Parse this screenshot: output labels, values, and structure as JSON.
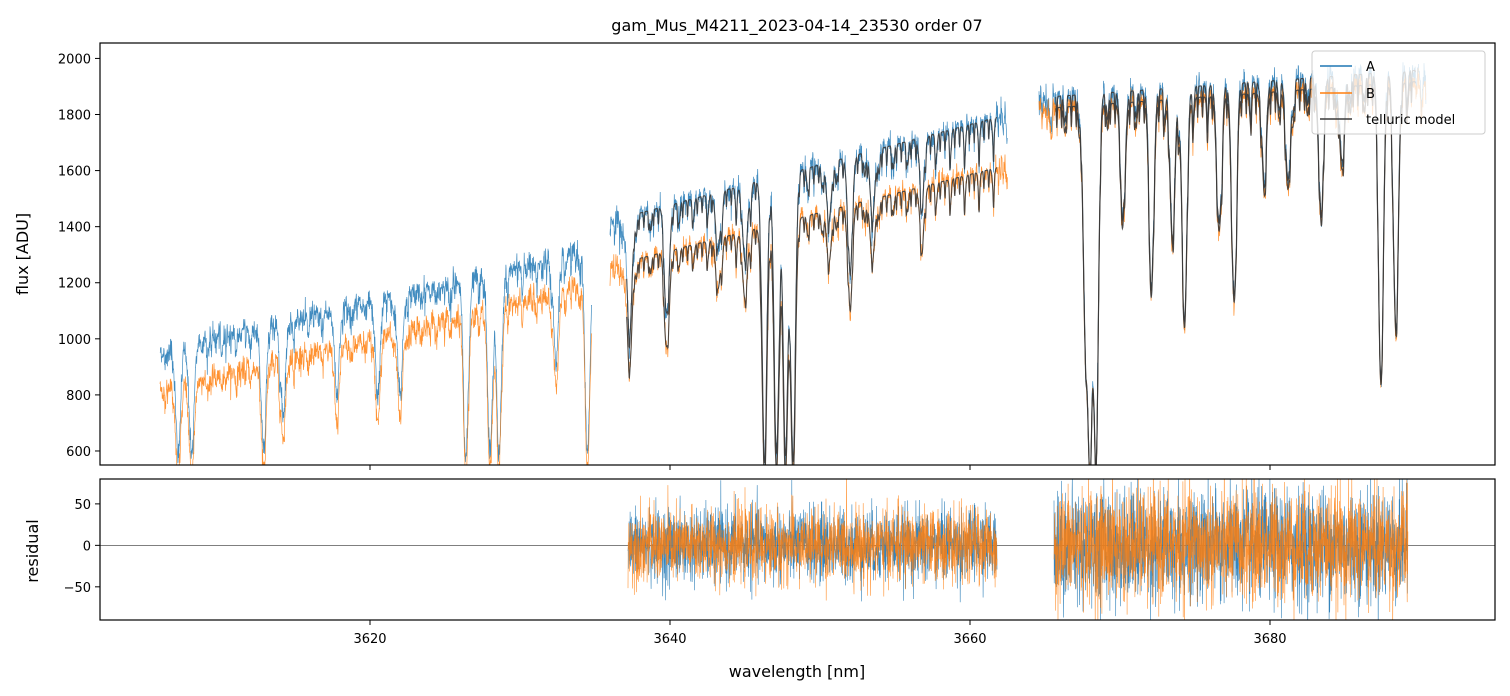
{
  "chart_data": [
    {
      "type": "line",
      "panel": "flux",
      "title": "gam_Mus_M4211_2023-04-14_23530  order 07",
      "xlabel": "",
      "ylabel": "flux [ADU]",
      "xlim": [
        3602,
        3695
      ],
      "ylim": [
        550,
        2055
      ],
      "yticks": [
        600,
        800,
        1000,
        1200,
        1400,
        1600,
        1800,
        2000
      ],
      "xticks": [
        3620,
        3640,
        3660,
        3680
      ],
      "grid": false,
      "legend": {
        "position": "top-right",
        "entries": [
          "A",
          "B",
          "telluric model"
        ]
      },
      "segments": [
        {
          "x0": 3606.0,
          "x1": 3634.8,
          "A": [
            960,
            1320
          ],
          "B": [
            820,
            1200
          ]
        },
        {
          "x0": 3636.0,
          "x1": 3662.5,
          "A": [
            1420,
            1800
          ],
          "B": [
            1260,
            1620
          ]
        },
        {
          "x0": 3664.6,
          "x1": 3690.4,
          "A": [
            1860,
            1960
          ],
          "B": [
            1820,
            1920
          ]
        }
      ],
      "absorption_lines": [
        {
          "x": 3607.2,
          "min": 560
        },
        {
          "x": 3608.1,
          "min": 560
        },
        {
          "x": 3612.9,
          "min": 580
        },
        {
          "x": 3614.2,
          "min": 690
        },
        {
          "x": 3617.8,
          "min": 790
        },
        {
          "x": 3620.5,
          "min": 770
        },
        {
          "x": 3622.0,
          "min": 760
        },
        {
          "x": 3626.4,
          "min": 560
        },
        {
          "x": 3628.0,
          "min": 560
        },
        {
          "x": 3628.6,
          "min": 560
        },
        {
          "x": 3632.4,
          "min": 880
        },
        {
          "x": 3634.5,
          "min": 560
        },
        {
          "x": 3637.3,
          "min": 950
        },
        {
          "x": 3639.8,
          "min": 1040
        },
        {
          "x": 3643.2,
          "min": 1250
        },
        {
          "x": 3645.0,
          "min": 1210
        },
        {
          "x": 3646.3,
          "min": 560
        },
        {
          "x": 3647.1,
          "min": 560
        },
        {
          "x": 3647.7,
          "min": 560
        },
        {
          "x": 3648.2,
          "min": 560
        },
        {
          "x": 3650.6,
          "min": 1350
        },
        {
          "x": 3652.0,
          "min": 1220
        },
        {
          "x": 3653.5,
          "min": 1360
        },
        {
          "x": 3656.8,
          "min": 1450
        },
        {
          "x": 3667.7,
          "min": 1050
        },
        {
          "x": 3668.0,
          "min": 560
        },
        {
          "x": 3668.4,
          "min": 560
        },
        {
          "x": 3670.2,
          "min": 1460
        },
        {
          "x": 3672.1,
          "min": 1200
        },
        {
          "x": 3673.5,
          "min": 1350
        },
        {
          "x": 3674.3,
          "min": 1050
        },
        {
          "x": 3676.6,
          "min": 1400
        },
        {
          "x": 3677.6,
          "min": 1150
        },
        {
          "x": 3679.6,
          "min": 1600
        },
        {
          "x": 3681.2,
          "min": 1550
        },
        {
          "x": 3683.4,
          "min": 1480
        },
        {
          "x": 3684.8,
          "min": 1620
        },
        {
          "x": 3687.4,
          "min": 850
        },
        {
          "x": 3688.4,
          "min": 1030
        }
      ],
      "series": [
        {
          "name": "A",
          "color": "#1f77b4"
        },
        {
          "name": "B",
          "color": "#ff7f0e"
        },
        {
          "name": "telluric model",
          "color": "#3a3a3a"
        }
      ]
    },
    {
      "type": "line",
      "panel": "residual",
      "xlabel": "wavelength [nm]",
      "ylabel": "residual",
      "xlim": [
        3602,
        3695
      ],
      "ylim": [
        -90,
        80
      ],
      "yticks": [
        -50,
        0,
        50
      ],
      "xticks": [
        3620,
        3640,
        3660,
        3680
      ],
      "xticklabels": [
        "3620",
        "3640",
        "3660",
        "3680"
      ],
      "yticklabels": [
        "−50",
        "0",
        "50"
      ],
      "grid": false,
      "zero_line": true,
      "segments": [
        {
          "x0": 3637.2,
          "x1": 3661.8,
          "noise_sigma": 22
        },
        {
          "x0": 3665.6,
          "x1": 3689.2,
          "noise_sigma": 34
        }
      ],
      "series": [
        {
          "name": "A",
          "color": "#1f77b4"
        },
        {
          "name": "B",
          "color": "#ff7f0e"
        }
      ]
    }
  ]
}
